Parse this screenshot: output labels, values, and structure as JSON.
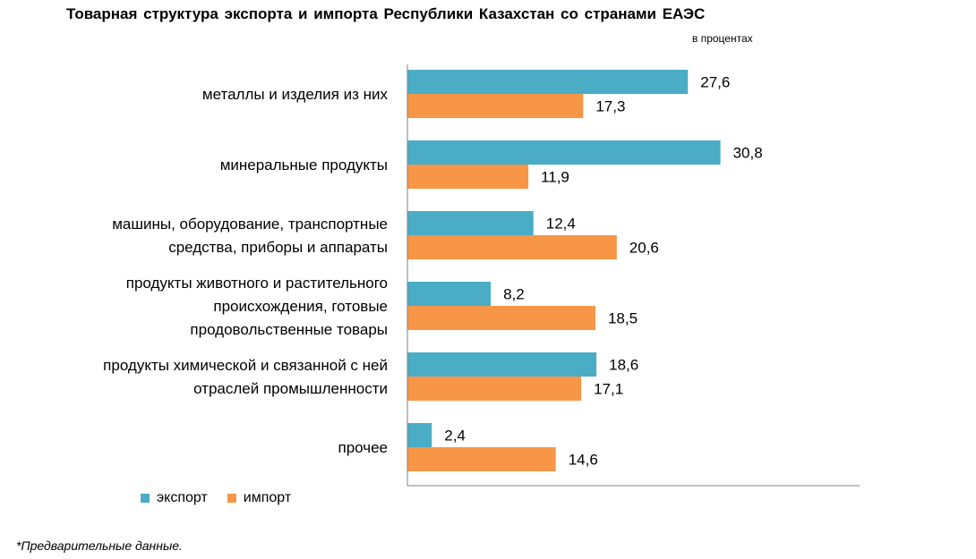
{
  "chart_data": {
    "type": "bar",
    "orientation": "horizontal",
    "title": "Товарная структура экспорта и импорта Республики Казахстан со странами ЕАЭС",
    "subtitle": "в процентах",
    "categories": [
      [
        "металлы и изделия из них"
      ],
      [
        "минеральные продукты"
      ],
      [
        "машины, оборудование, транспортные",
        "средства, приборы и аппараты"
      ],
      [
        "продукты животного и растительного",
        "происхождения, готовые",
        "продовольственные товары"
      ],
      [
        "продукты химической и связанной с ней",
        "отраслей промышленности"
      ],
      [
        "прочее"
      ]
    ],
    "series": [
      {
        "name": "экспорт",
        "color": "#4BACC6",
        "values": [
          27.6,
          30.8,
          12.4,
          8.2,
          18.6,
          2.4
        ],
        "labels": [
          "27,6",
          "30,8",
          "12,4",
          "8,2",
          "18,6",
          "2,4"
        ]
      },
      {
        "name": "импорт",
        "color": "#F79646",
        "values": [
          17.3,
          11.9,
          20.6,
          18.5,
          17.1,
          14.6
        ],
        "labels": [
          "17,3",
          "11,9",
          "20,6",
          "18,5",
          "17,1",
          "14,6"
        ]
      }
    ],
    "xlim": [
      0,
      40
    ],
    "grid": false,
    "legend_position": "bottom-left"
  },
  "footnote": "*Предварительные данные."
}
